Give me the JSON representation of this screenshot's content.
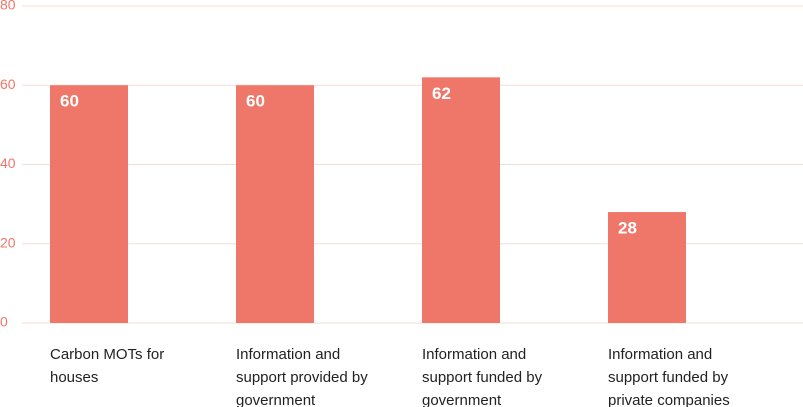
{
  "chart_data": {
    "type": "bar",
    "categories": [
      "Carbon MOTs for houses",
      "Information and support provided by government",
      "Information and support funded by government",
      "Information and support funded by private companies"
    ],
    "values": [
      60,
      60,
      62,
      28
    ],
    "color": "#ee776a",
    "ylim": [
      0,
      80
    ],
    "yticks": [
      0,
      20,
      40,
      60,
      80
    ],
    "grid": true
  }
}
